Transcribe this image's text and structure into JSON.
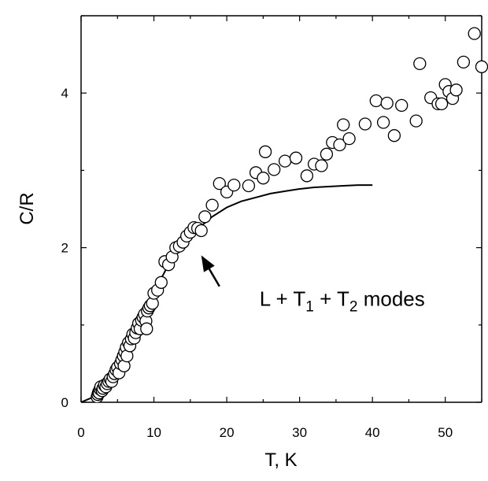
{
  "chart_data": {
    "type": "scatter",
    "title": "",
    "xlabel": "T, K",
    "ylabel": "C/R",
    "xlim": [
      0,
      55
    ],
    "ylim": [
      0,
      5
    ],
    "xticks": [
      0,
      10,
      20,
      30,
      40,
      50
    ],
    "yticks": [
      0,
      2,
      4
    ],
    "minor_ticks": true,
    "grid": false,
    "series": [
      {
        "marker": "open-circle",
        "points": [
          [
            2.2,
            0.07
          ],
          [
            2.3,
            0.1
          ],
          [
            2.4,
            0.13
          ],
          [
            2.5,
            0.12
          ],
          [
            2.6,
            0.17
          ],
          [
            2.7,
            0.2
          ],
          [
            2.9,
            0.15
          ],
          [
            3.0,
            0.18
          ],
          [
            3.2,
            0.22
          ],
          [
            3.4,
            0.2
          ],
          [
            3.6,
            0.24
          ],
          [
            3.8,
            0.27
          ],
          [
            4.0,
            0.3
          ],
          [
            4.2,
            0.27
          ],
          [
            4.4,
            0.33
          ],
          [
            4.6,
            0.37
          ],
          [
            4.8,
            0.42
          ],
          [
            5.0,
            0.45
          ],
          [
            5.2,
            0.38
          ],
          [
            5.4,
            0.5
          ],
          [
            5.6,
            0.55
          ],
          [
            5.8,
            0.6
          ],
          [
            5.9,
            0.47
          ],
          [
            6.0,
            0.65
          ],
          [
            6.2,
            0.71
          ],
          [
            6.3,
            0.6
          ],
          [
            6.5,
            0.77
          ],
          [
            6.7,
            0.73
          ],
          [
            6.9,
            0.82
          ],
          [
            7.1,
            0.88
          ],
          [
            7.3,
            0.83
          ],
          [
            7.5,
            0.9
          ],
          [
            7.7,
            0.96
          ],
          [
            7.9,
            1.02
          ],
          [
            8.1,
            0.95
          ],
          [
            8.3,
            1.06
          ],
          [
            8.5,
            1.1
          ],
          [
            8.7,
            1.14
          ],
          [
            8.9,
            1.05
          ],
          [
            9.0,
            0.95
          ],
          [
            9.1,
            1.18
          ],
          [
            9.3,
            1.22
          ],
          [
            9.5,
            1.25
          ],
          [
            9.8,
            1.28
          ],
          [
            10.0,
            1.41
          ],
          [
            10.5,
            1.45
          ],
          [
            11.0,
            1.55
          ],
          [
            11.5,
            1.82
          ],
          [
            12.0,
            1.78
          ],
          [
            12.5,
            1.88
          ],
          [
            13.0,
            2.0
          ],
          [
            13.5,
            2.02
          ],
          [
            14.0,
            2.07
          ],
          [
            14.5,
            2.15
          ],
          [
            15.0,
            2.2
          ],
          [
            15.5,
            2.26
          ],
          [
            16.0,
            2.25
          ],
          [
            16.5,
            2.22
          ],
          [
            17.0,
            2.4
          ],
          [
            18.0,
            2.55
          ],
          [
            19.0,
            2.83
          ],
          [
            20.0,
            2.72
          ],
          [
            21.0,
            2.81
          ],
          [
            23.0,
            2.8
          ],
          [
            24.0,
            2.97
          ],
          [
            25.0,
            2.9
          ],
          [
            25.3,
            3.24
          ],
          [
            26.5,
            3.01
          ],
          [
            28.0,
            3.12
          ],
          [
            29.5,
            3.16
          ],
          [
            31.0,
            2.93
          ],
          [
            32.0,
            3.08
          ],
          [
            33.0,
            3.06
          ],
          [
            33.7,
            3.21
          ],
          [
            34.5,
            3.36
          ],
          [
            35.5,
            3.33
          ],
          [
            36.0,
            3.59
          ],
          [
            36.8,
            3.41
          ],
          [
            39.0,
            3.6
          ],
          [
            40.5,
            3.9
          ],
          [
            41.5,
            3.62
          ],
          [
            42.0,
            3.87
          ],
          [
            43.0,
            3.45
          ],
          [
            44.0,
            3.84
          ],
          [
            46.0,
            3.64
          ],
          [
            46.5,
            4.38
          ],
          [
            48.0,
            3.94
          ],
          [
            49.0,
            3.86
          ],
          [
            49.5,
            3.86
          ],
          [
            50.0,
            4.11
          ],
          [
            50.5,
            4.02
          ],
          [
            51.0,
            3.93
          ],
          [
            51.5,
            4.04
          ],
          [
            52.5,
            4.4
          ],
          [
            54.0,
            4.77
          ],
          [
            55.0,
            4.34
          ]
        ]
      },
      {
        "marker": "line",
        "points": [
          [
            0,
            0
          ],
          [
            2,
            0.08
          ],
          [
            4,
            0.33
          ],
          [
            6,
            0.68
          ],
          [
            8,
            1.05
          ],
          [
            10,
            1.42
          ],
          [
            12,
            1.78
          ],
          [
            14,
            2.05
          ],
          [
            16,
            2.24
          ],
          [
            18,
            2.4
          ],
          [
            20,
            2.52
          ],
          [
            22,
            2.6
          ],
          [
            24,
            2.65
          ],
          [
            26,
            2.7
          ],
          [
            28,
            2.73
          ],
          [
            30,
            2.76
          ],
          [
            32,
            2.78
          ],
          [
            34,
            2.79
          ],
          [
            36,
            2.8
          ],
          [
            38,
            2.81
          ],
          [
            40,
            2.81
          ]
        ]
      }
    ],
    "annotation": {
      "parts": [
        "L + T",
        "1",
        " + T",
        "2",
        " modes"
      ],
      "text_at": [
        24.5,
        1.25
      ],
      "arrow_from": [
        19.0,
        1.5
      ],
      "arrow_to": [
        16.5,
        1.9
      ]
    }
  }
}
